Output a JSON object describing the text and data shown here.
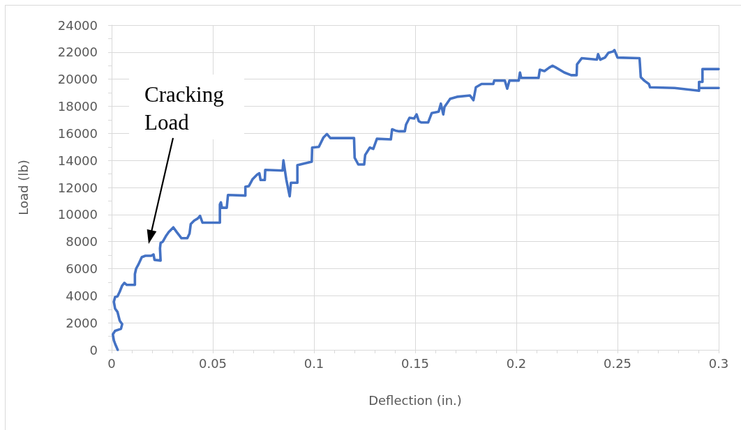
{
  "chart_data": {
    "type": "line",
    "xlabel": "Deflection (in.)",
    "ylabel": "Load (lb)",
    "x": [
      0.003,
      0.0017,
      0.0011,
      0.0006,
      0.0017,
      0.0046,
      0.0052,
      0.004,
      0.0029,
      0.0017,
      0.0011,
      0.0017,
      0.0029,
      0.004,
      0.0052,
      0.0063,
      0.0075,
      0.0115,
      0.0115,
      0.0121,
      0.0132,
      0.0149,
      0.0167,
      0.0196,
      0.0207,
      0.0212,
      0.0242,
      0.0239,
      0.0242,
      0.0253,
      0.027,
      0.0282,
      0.0305,
      0.0322,
      0.0345,
      0.0374,
      0.0385,
      0.0391,
      0.0408,
      0.0425,
      0.0437,
      0.0449,
      0.0535,
      0.0535,
      0.054,
      0.0545,
      0.0569,
      0.0575,
      0.0661,
      0.0661,
      0.0678,
      0.0696,
      0.0719,
      0.073,
      0.0736,
      0.0757,
      0.0759,
      0.0845,
      0.0849,
      0.0863,
      0.088,
      0.0886,
      0.0918,
      0.0918,
      0.0989,
      0.0991,
      0.1024,
      0.1047,
      0.1064,
      0.1081,
      0.1198,
      0.1201,
      0.1219,
      0.1248,
      0.1253,
      0.1276,
      0.1293,
      0.1311,
      0.138,
      0.1386,
      0.1403,
      0.1421,
      0.1449,
      0.1455,
      0.1472,
      0.1495,
      0.1507,
      0.1518,
      0.153,
      0.1564,
      0.1582,
      0.1616,
      0.1627,
      0.1639,
      0.1645,
      0.1673,
      0.1707,
      0.1771,
      0.1788,
      0.18,
      0.1828,
      0.1886,
      0.1891,
      0.1943,
      0.1955,
      0.1966,
      0.2012,
      0.2018,
      0.2024,
      0.211,
      0.2116,
      0.2139,
      0.2162,
      0.2179,
      0.2197,
      0.2237,
      0.2271,
      0.2298,
      0.23,
      0.2323,
      0.2398,
      0.2404,
      0.2415,
      0.2438,
      0.2455,
      0.2478,
      0.2485,
      0.25,
      0.2609,
      0.2615,
      0.2632,
      0.2655,
      0.2661,
      0.2782,
      0.2874,
      0.2903,
      0.2903,
      0.292,
      0.292,
      0.3
    ],
    "series": [
      {
        "color": "#4472c4",
        "values": [
          0,
          450,
          700,
          1150,
          1400,
          1550,
          1900,
          2150,
          2800,
          3050,
          3550,
          3900,
          3950,
          4300,
          4750,
          4950,
          4800,
          4800,
          5600,
          6000,
          6300,
          6850,
          6950,
          6950,
          7050,
          6650,
          6600,
          7500,
          7900,
          8000,
          8450,
          8700,
          9050,
          8700,
          8250,
          8250,
          8600,
          9300,
          9550,
          9700,
          9900,
          9400,
          9400,
          10750,
          10900,
          10500,
          10500,
          11450,
          11400,
          12050,
          12100,
          12600,
          12950,
          13050,
          12550,
          12550,
          13300,
          13250,
          14000,
          12600,
          11350,
          12350,
          12350,
          13650,
          13900,
          14950,
          15000,
          15700,
          15950,
          15650,
          15650,
          14200,
          13700,
          13700,
          14400,
          14950,
          14850,
          15600,
          15550,
          16300,
          16200,
          16150,
          16150,
          16650,
          17150,
          17100,
          17400,
          16900,
          16800,
          16800,
          17500,
          17600,
          18200,
          17400,
          17950,
          18550,
          18700,
          18800,
          18450,
          19400,
          19650,
          19650,
          19900,
          19900,
          19300,
          19900,
          19900,
          20500,
          20100,
          20100,
          20700,
          20600,
          20850,
          21000,
          20850,
          20500,
          20300,
          20300,
          21100,
          21550,
          21450,
          21850,
          21450,
          21600,
          21950,
          22050,
          22150,
          21600,
          21550,
          20150,
          19900,
          19650,
          19400,
          19350,
          19200,
          19150,
          19800,
          19800,
          20750,
          20750
        ]
      },
      {
        "color": "#4472c4",
        "x": [
          0.2909,
          0.3
        ],
        "values": [
          19350,
          19350
        ]
      }
    ],
    "xlim": [
      0,
      0.3
    ],
    "ylim": [
      0,
      24000
    ],
    "xticks": [
      0,
      {
        "value": 0.01,
        "label": null
      },
      {
        "value": 0.02,
        "label": null
      },
      {
        "value": 0.03,
        "label": null
      },
      {
        "value": 0.04,
        "label": null
      },
      0.05,
      {
        "value": 0.06,
        "label": null
      },
      {
        "value": 0.07,
        "label": null
      },
      {
        "value": 0.08,
        "label": null
      },
      {
        "value": 0.09,
        "label": null
      },
      0.1,
      {
        "value": 0.11,
        "label": null
      },
      {
        "value": 0.12,
        "label": null
      },
      {
        "value": 0.13,
        "label": null
      },
      {
        "value": 0.14,
        "label": null
      },
      0.15,
      {
        "value": 0.16,
        "label": null
      },
      {
        "value": 0.17,
        "label": null
      },
      {
        "value": 0.18,
        "label": null
      },
      {
        "value": 0.19,
        "label": null
      },
      0.2,
      {
        "value": 0.21,
        "label": null
      },
      {
        "value": 0.22,
        "label": null
      },
      {
        "value": 0.23,
        "label": null
      },
      {
        "value": 0.24,
        "label": null
      },
      0.25,
      {
        "value": 0.26,
        "label": null
      },
      {
        "value": 0.27,
        "label": null
      },
      {
        "value": 0.28,
        "label": null
      },
      {
        "value": 0.29,
        "label": null
      },
      0.3
    ],
    "yticks": [
      0,
      {
        "value": 1000,
        "label": null
      },
      2000,
      {
        "value": 3000,
        "label": null
      },
      4000,
      {
        "value": 5000,
        "label": null
      },
      6000,
      {
        "value": 7000,
        "label": null
      },
      8000,
      {
        "value": 9000,
        "label": null
      },
      10000,
      {
        "value": 11000,
        "label": null
      },
      12000,
      {
        "value": 13000,
        "label": null
      },
      14000,
      {
        "value": 15000,
        "label": null
      },
      16000,
      {
        "value": 17000,
        "label": null
      },
      18000,
      {
        "value": 19000,
        "label": null
      },
      20000,
      {
        "value": 21000,
        "label": null
      },
      22000,
      {
        "value": 23000,
        "label": null
      },
      24000
    ],
    "grid": true,
    "marker": "none",
    "line_style": "solid",
    "annotations": [
      "Cracking Load"
    ]
  }
}
